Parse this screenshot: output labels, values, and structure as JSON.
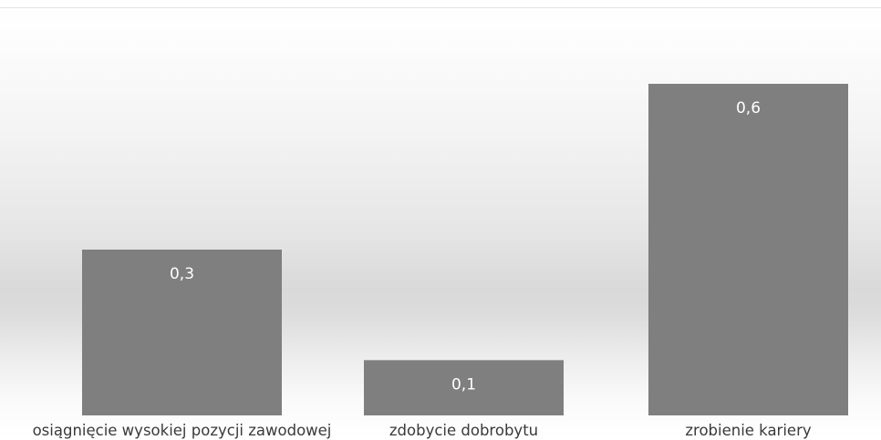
{
  "chart_data": {
    "type": "bar",
    "categories": [
      "osiągnięcie wysokiej pozycji zawodowej",
      "zdobycie dobrobytu",
      "zrobienie kariery"
    ],
    "values": [
      0.3,
      0.1,
      0.6
    ],
    "data_labels": [
      "0,3",
      "0,1",
      "0,6"
    ],
    "ylim": [
      0,
      0.6
    ],
    "grid": false,
    "legend": "none",
    "colors": {
      "bar": "#7f7f7f",
      "data_label": "#ffffff",
      "category_label": "#3a3a3a"
    }
  }
}
